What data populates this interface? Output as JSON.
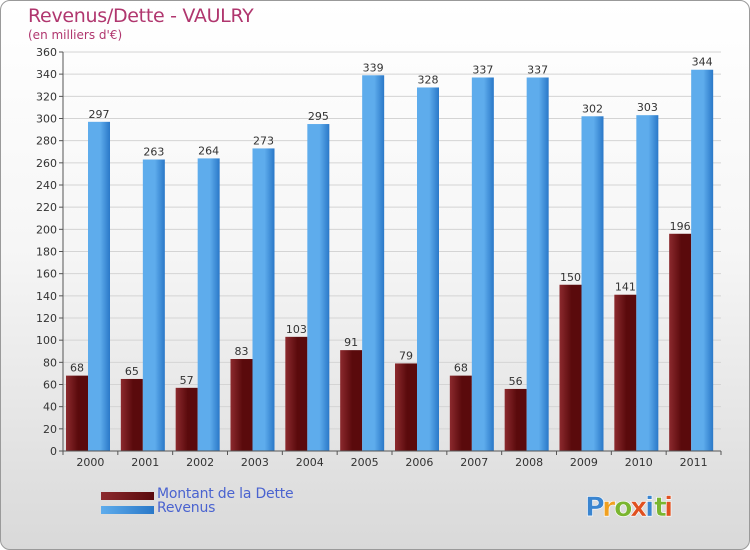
{
  "title": "Revenus/Dette - VAULRY",
  "subtitle": "(en milliers d'€)",
  "colors": {
    "title": "#b0366e",
    "dette_dark": "#5a0a0c",
    "dette_light": "#8c2a2e",
    "revenus_dark": "#2a78c8",
    "revenus_light": "#5eacec",
    "legend_text": "#4a63d0"
  },
  "legend": {
    "dette_label": "Montant de la Dette",
    "revenus_label": "Revenus"
  },
  "logo": {
    "text": "Proxiti",
    "letter_colors": [
      "#3a85d0",
      "#f0a020",
      "#7ab530",
      "#e05020",
      "#3a85d0",
      "#7ab530",
      "#e05020"
    ]
  },
  "chart_data": {
    "type": "bar",
    "categories": [
      "2000",
      "2001",
      "2002",
      "2003",
      "2004",
      "2005",
      "2006",
      "2007",
      "2008",
      "2009",
      "2010",
      "2011"
    ],
    "series": [
      {
        "name": "Montant de la Dette",
        "values": [
          68,
          65,
          57,
          83,
          103,
          91,
          79,
          68,
          56,
          150,
          141,
          196
        ]
      },
      {
        "name": "Revenus",
        "values": [
          297,
          263,
          264,
          273,
          295,
          339,
          328,
          337,
          337,
          302,
          303,
          344
        ]
      }
    ],
    "ylim": [
      0,
      360
    ],
    "ytick_step": 20,
    "grid": true,
    "legend_position": "bottom-left"
  }
}
